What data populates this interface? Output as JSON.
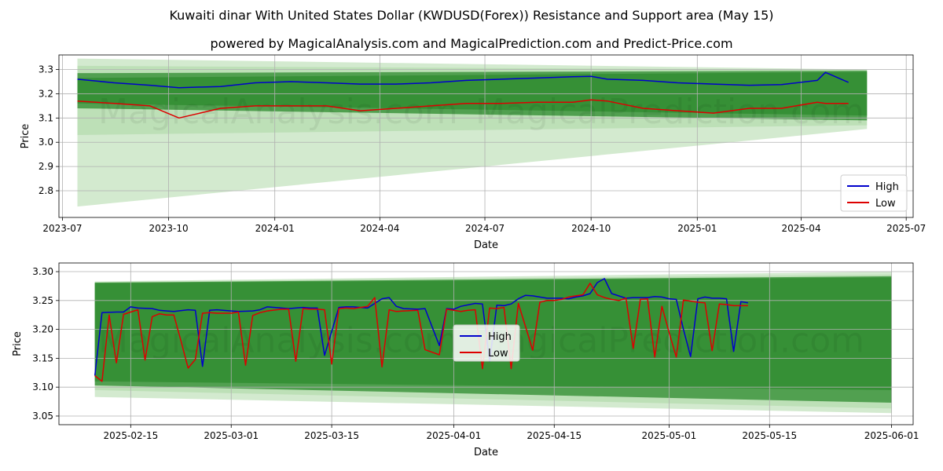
{
  "header": {
    "title": "Kuwaiti dinar With United States Dollar (KWDUSD(Forex)) Resistance and Support area (May 15)",
    "subtitle": "powered by MagicalAnalysis.com and MagicalPrediction.com and Predict-Price.com"
  },
  "watermarks": [
    "MagicalAnalysis.com",
    "MagicalPrediction.com"
  ],
  "colors": {
    "high": "#0000cc",
    "low": "#dd0000",
    "band_dark": "#2e8b2e",
    "band_light": "#a8d5a0"
  },
  "chart_data": [
    {
      "type": "line",
      "panel": "top",
      "xlabel": "Date",
      "ylabel": "Price",
      "xlim": [
        "2023-06-28",
        "2025-07-07"
      ],
      "ylim": [
        2.69,
        3.36
      ],
      "x_ticks": [
        "2023-07",
        "2023-10",
        "2024-01",
        "2024-04",
        "2024-07",
        "2024-10",
        "2025-01",
        "2025-04",
        "2025-07"
      ],
      "x_tick_dates": [
        "2023-07-01",
        "2023-10-01",
        "2024-01-01",
        "2024-04-01",
        "2024-07-01",
        "2024-10-01",
        "2025-01-01",
        "2025-04-01",
        "2025-07-01"
      ],
      "y_ticks": [
        "2.8",
        "2.9",
        "3.0",
        "3.1",
        "3.2",
        "3.3"
      ],
      "grid": true,
      "legend": "lower right",
      "series": [
        {
          "name": "High",
          "x": [
            "2023-07-14",
            "2023-08-15",
            "2023-09-15",
            "2023-10-10",
            "2023-11-15",
            "2023-12-15",
            "2024-01-15",
            "2024-02-15",
            "2024-03-15",
            "2024-04-15",
            "2024-05-15",
            "2024-06-15",
            "2024-07-15",
            "2024-08-15",
            "2024-09-15",
            "2024-10-01",
            "2024-10-15",
            "2024-11-15",
            "2024-12-15",
            "2025-01-15",
            "2025-02-15",
            "2025-03-15",
            "2025-04-15",
            "2025-04-22",
            "2025-05-12"
          ],
          "values": [
            3.26,
            3.245,
            3.235,
            3.225,
            3.23,
            3.245,
            3.25,
            3.245,
            3.24,
            3.24,
            3.245,
            3.255,
            3.26,
            3.265,
            3.27,
            3.272,
            3.26,
            3.255,
            3.245,
            3.24,
            3.235,
            3.238,
            3.255,
            3.288,
            3.247
          ]
        },
        {
          "name": "Low",
          "x": [
            "2023-07-14",
            "2023-08-15",
            "2023-09-15",
            "2023-10-10",
            "2023-11-15",
            "2023-12-15",
            "2024-01-15",
            "2024-02-15",
            "2024-03-15",
            "2024-04-15",
            "2024-05-15",
            "2024-06-15",
            "2024-07-15",
            "2024-08-15",
            "2024-09-15",
            "2024-10-01",
            "2024-10-15",
            "2024-11-15",
            "2024-12-15",
            "2025-01-15",
            "2025-02-15",
            "2025-03-15",
            "2025-04-15",
            "2025-04-22",
            "2025-05-12"
          ],
          "values": [
            3.17,
            3.16,
            3.15,
            3.1,
            3.14,
            3.15,
            3.15,
            3.15,
            3.13,
            3.14,
            3.15,
            3.16,
            3.16,
            3.165,
            3.165,
            3.175,
            3.17,
            3.14,
            3.13,
            3.12,
            3.14,
            3.14,
            3.165,
            3.16,
            3.16
          ]
        }
      ],
      "bands": [
        {
          "x": [
            "2023-07-14",
            "2025-05-28"
          ],
          "upper": [
            3.345,
            3.3
          ],
          "lower": [
            2.735,
            3.055
          ],
          "shade": "light"
        },
        {
          "x": [
            "2023-07-14",
            "2025-05-28"
          ],
          "upper": [
            3.315,
            3.298
          ],
          "lower": [
            3.03,
            3.07
          ],
          "shade": "light"
        },
        {
          "x": [
            "2023-07-14",
            "2025-05-28"
          ],
          "upper": [
            3.285,
            3.295
          ],
          "lower": [
            3.14,
            3.09
          ],
          "shade": "dark"
        },
        {
          "x": [
            "2023-07-14",
            "2025-05-28"
          ],
          "upper": [
            3.265,
            3.29
          ],
          "lower": [
            3.16,
            3.11
          ],
          "shade": "dark"
        }
      ]
    },
    {
      "type": "line",
      "panel": "bottom",
      "xlabel": "Date",
      "ylabel": "Price",
      "xlim": [
        "2025-02-05",
        "2025-06-04"
      ],
      "ylim": [
        3.035,
        3.315
      ],
      "x_ticks": [
        "2025-02-15",
        "2025-03-01",
        "2025-03-15",
        "2025-04-01",
        "2025-04-15",
        "2025-05-01",
        "2025-05-15",
        "2025-06-01"
      ],
      "y_ticks": [
        "3.05",
        "3.10",
        "3.15",
        "3.20",
        "3.25",
        "3.30"
      ],
      "grid": true,
      "legend": "center",
      "series": [
        {
          "name": "High",
          "x": [
            "2025-02-10",
            "2025-02-11",
            "2025-02-13",
            "2025-02-14",
            "2025-02-15",
            "2025-02-16",
            "2025-02-18",
            "2025-02-19",
            "2025-02-20",
            "2025-02-21",
            "2025-02-23",
            "2025-02-24",
            "2025-02-25",
            "2025-02-26",
            "2025-02-27",
            "2025-03-01",
            "2025-03-02",
            "2025-03-04",
            "2025-03-05",
            "2025-03-06",
            "2025-03-08",
            "2025-03-09",
            "2025-03-11",
            "2025-03-12",
            "2025-03-13",
            "2025-03-14",
            "2025-03-16",
            "2025-03-17",
            "2025-03-18",
            "2025-03-20",
            "2025-03-21",
            "2025-03-22",
            "2025-03-23",
            "2025-03-24",
            "2025-03-25",
            "2025-03-27",
            "2025-03-28",
            "2025-03-30",
            "2025-03-31",
            "2025-04-01",
            "2025-04-02",
            "2025-04-04",
            "2025-04-05",
            "2025-04-06",
            "2025-04-07",
            "2025-04-08",
            "2025-04-09",
            "2025-04-10",
            "2025-04-11",
            "2025-04-12",
            "2025-04-13",
            "2025-04-14",
            "2025-04-15",
            "2025-04-16",
            "2025-04-17",
            "2025-04-18",
            "2025-04-19",
            "2025-04-20",
            "2025-04-21",
            "2025-04-22",
            "2025-04-23",
            "2025-04-25",
            "2025-04-26",
            "2025-04-27",
            "2025-04-28",
            "2025-04-29",
            "2025-04-30",
            "2025-05-01",
            "2025-05-02",
            "2025-05-03",
            "2025-05-04",
            "2025-05-05",
            "2025-05-06",
            "2025-05-07",
            "2025-05-08",
            "2025-05-09",
            "2025-05-10",
            "2025-05-11",
            "2025-05-12"
          ],
          "values": [
            3.12,
            3.229,
            3.23,
            3.23,
            3.239,
            3.237,
            3.236,
            3.233,
            3.232,
            3.231,
            3.234,
            3.233,
            3.136,
            3.233,
            3.234,
            3.232,
            3.231,
            3.232,
            3.234,
            3.239,
            3.237,
            3.236,
            3.238,
            3.237,
            3.237,
            3.155,
            3.238,
            3.239,
            3.239,
            3.237,
            3.245,
            3.253,
            3.255,
            3.24,
            3.236,
            3.235,
            3.236,
            3.172,
            3.236,
            3.235,
            3.24,
            3.245,
            3.244,
            3.145,
            3.242,
            3.241,
            3.244,
            3.253,
            3.259,
            3.258,
            3.256,
            3.254,
            3.254,
            3.254,
            3.253,
            3.256,
            3.258,
            3.262,
            3.281,
            3.288,
            3.262,
            3.254,
            3.255,
            3.255,
            3.255,
            3.257,
            3.256,
            3.253,
            3.252,
            3.2,
            3.153,
            3.253,
            3.256,
            3.254,
            3.254,
            3.253,
            3.162,
            3.248,
            3.246
          ]
        },
        {
          "name": "Low",
          "x": [
            "2025-02-10",
            "2025-02-11",
            "2025-02-12",
            "2025-02-13",
            "2025-02-14",
            "2025-02-15",
            "2025-02-16",
            "2025-02-17",
            "2025-02-18",
            "2025-02-19",
            "2025-02-20",
            "2025-02-21",
            "2025-02-22",
            "2025-02-23",
            "2025-02-24",
            "2025-02-25",
            "2025-02-26",
            "2025-02-27",
            "2025-03-01",
            "2025-03-02",
            "2025-03-03",
            "2025-03-04",
            "2025-03-05",
            "2025-03-06",
            "2025-03-08",
            "2025-03-09",
            "2025-03-10",
            "2025-03-11",
            "2025-03-12",
            "2025-03-13",
            "2025-03-14",
            "2025-03-15",
            "2025-03-16",
            "2025-03-17",
            "2025-03-18",
            "2025-03-20",
            "2025-03-21",
            "2025-03-22",
            "2025-03-23",
            "2025-03-24",
            "2025-03-25",
            "2025-03-27",
            "2025-03-28",
            "2025-03-30",
            "2025-03-31",
            "2025-04-01",
            "2025-04-02",
            "2025-04-03",
            "2025-04-04",
            "2025-04-05",
            "2025-04-06",
            "2025-04-07",
            "2025-04-08",
            "2025-04-09",
            "2025-04-10",
            "2025-04-11",
            "2025-04-12",
            "2025-04-13",
            "2025-04-14",
            "2025-04-15",
            "2025-04-16",
            "2025-04-17",
            "2025-04-18",
            "2025-04-19",
            "2025-04-20",
            "2025-04-21",
            "2025-04-22",
            "2025-04-23",
            "2025-04-24",
            "2025-04-25",
            "2025-04-26",
            "2025-04-27",
            "2025-04-28",
            "2025-04-29",
            "2025-04-30",
            "2025-05-01",
            "2025-05-02",
            "2025-05-03",
            "2025-05-04",
            "2025-05-05",
            "2025-05-06",
            "2025-05-07",
            "2025-05-08",
            "2025-05-09",
            "2025-05-10",
            "2025-05-11",
            "2025-05-12"
          ],
          "values": [
            3.12,
            3.11,
            3.225,
            3.142,
            3.226,
            3.23,
            3.234,
            3.147,
            3.222,
            3.227,
            3.225,
            3.225,
            3.18,
            3.133,
            3.148,
            3.228,
            3.229,
            3.228,
            3.228,
            3.23,
            3.138,
            3.224,
            3.229,
            3.232,
            3.235,
            3.235,
            3.145,
            3.236,
            3.235,
            3.235,
            3.234,
            3.14,
            3.236,
            3.237,
            3.236,
            3.24,
            3.255,
            3.135,
            3.234,
            3.231,
            3.232,
            3.233,
            3.165,
            3.156,
            3.235,
            3.233,
            3.231,
            3.233,
            3.234,
            3.132,
            3.237,
            3.236,
            3.238,
            3.132,
            3.245,
            3.205,
            3.164,
            3.247,
            3.25,
            3.25,
            3.252,
            3.256,
            3.258,
            3.26,
            3.28,
            3.26,
            3.255,
            3.252,
            3.25,
            3.254,
            3.167,
            3.252,
            3.253,
            3.152,
            3.24,
            3.195,
            3.152,
            3.251,
            3.249,
            3.247,
            3.246,
            3.163,
            3.244,
            3.243,
            3.241,
            3.241,
            3.241
          ]
        }
      ],
      "bands": [
        {
          "x": [
            "2025-02-10",
            "2025-06-01"
          ],
          "upper": [
            3.283,
            3.3
          ],
          "lower": [
            3.083,
            3.055
          ],
          "shade": "light"
        },
        {
          "x": [
            "2025-02-10",
            "2025-06-01"
          ],
          "upper": [
            3.282,
            3.295
          ],
          "lower": [
            3.095,
            3.063
          ],
          "shade": "light"
        },
        {
          "x": [
            "2025-02-10",
            "2025-06-01"
          ],
          "upper": [
            3.281,
            3.292
          ],
          "lower": [
            3.103,
            3.073
          ],
          "shade": "dark"
        },
        {
          "x": [
            "2025-02-10",
            "2025-06-01"
          ],
          "upper": [
            3.28,
            3.29
          ],
          "lower": [
            3.11,
            3.095
          ],
          "shade": "dark"
        }
      ]
    }
  ]
}
